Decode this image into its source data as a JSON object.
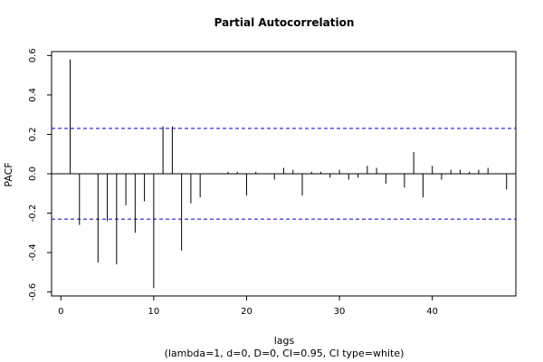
{
  "chart_data": {
    "type": "bar",
    "title": "Partial Autocorrelation",
    "xlabel": "lags",
    "subtitle": "(lambda=1, d=0, D=0, CI=0.95, CI type=white)",
    "ylabel": "PACF",
    "xlim": [
      -1,
      49
    ],
    "ylim": [
      -0.62,
      0.62
    ],
    "xticks": [
      0,
      10,
      20,
      30,
      40
    ],
    "yticks": [
      -0.6,
      -0.4,
      -0.2,
      0.0,
      0.2,
      0.4,
      0.6
    ],
    "ytick_labels": [
      "-0.6",
      "-0.4",
      "-0.2",
      "0.0",
      "0.2",
      "0.4",
      "0.6"
    ],
    "confidence_band": 0.23,
    "grid": false,
    "lags": [
      1,
      2,
      3,
      4,
      5,
      6,
      7,
      8,
      9,
      10,
      11,
      12,
      13,
      14,
      15,
      16,
      17,
      18,
      19,
      20,
      21,
      22,
      23,
      24,
      25,
      26,
      27,
      28,
      29,
      30,
      31,
      32,
      33,
      34,
      35,
      36,
      37,
      38,
      39,
      40,
      41,
      42,
      43,
      44,
      45,
      46,
      47,
      48
    ],
    "values": [
      0.58,
      -0.26,
      0.0,
      -0.45,
      -0.24,
      -0.46,
      -0.16,
      -0.3,
      -0.14,
      -0.58,
      0.24,
      0.24,
      -0.39,
      -0.15,
      -0.12,
      0.0,
      0.0,
      0.01,
      0.01,
      -0.11,
      0.01,
      0.0,
      -0.03,
      0.03,
      0.02,
      -0.11,
      0.01,
      0.01,
      -0.02,
      0.02,
      -0.03,
      -0.02,
      0.04,
      0.03,
      -0.05,
      0.0,
      -0.07,
      0.11,
      -0.12,
      0.04,
      -0.03,
      0.02,
      0.02,
      0.01,
      0.02,
      0.03,
      0.0,
      -0.08
    ],
    "colors": {
      "bars": "#000000",
      "ci": "#0000cc",
      "axes": "#000000"
    }
  }
}
